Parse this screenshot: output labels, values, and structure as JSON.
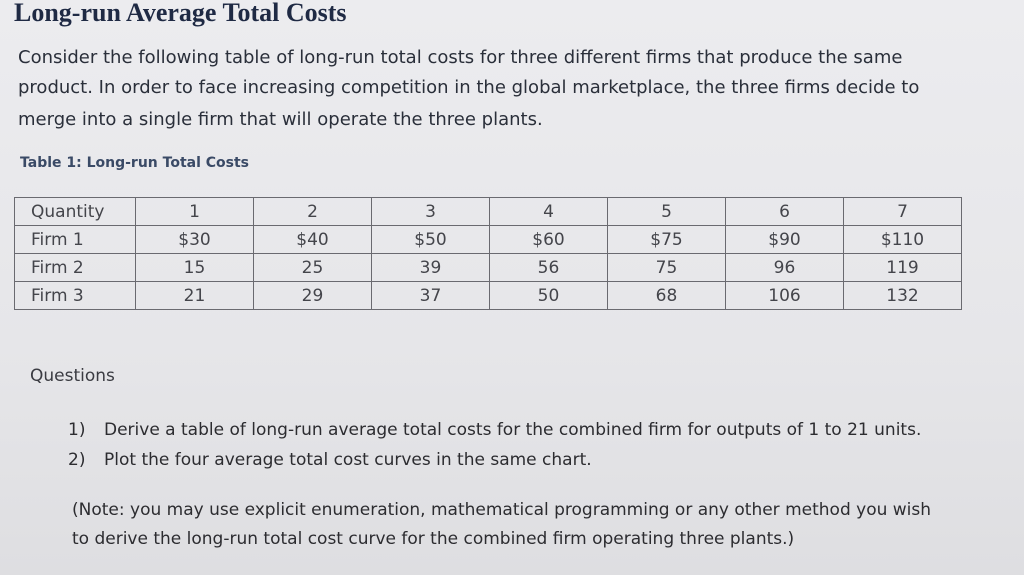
{
  "title": "Long-run Average Total Costs",
  "intro": [
    "Consider the following table of long-run total costs for three different firms that produce the same",
    "product.  In order to face increasing competition in the global marketplace, the three firms decide to",
    "merge into a single firm that will operate the three plants."
  ],
  "table": {
    "caption": "Table 1: Long-run Total Costs",
    "rows": [
      [
        "Quantity",
        "1",
        "2",
        "3",
        "4",
        "5",
        "6",
        "7"
      ],
      [
        "Firm 1",
        "$30",
        "$40",
        "$50",
        "$60",
        "$75",
        "$90",
        "$110"
      ],
      [
        "Firm 2",
        "15",
        "25",
        "39",
        "56",
        "75",
        "96",
        "119"
      ],
      [
        "Firm 3",
        "21",
        "29",
        "37",
        "50",
        "68",
        "106",
        "132"
      ]
    ]
  },
  "questions": {
    "heading": "Questions",
    "items": [
      {
        "number": "1)",
        "text": "Derive a table of long-run average total costs for the combined firm for outputs of 1 to 21 units."
      },
      {
        "number": "2)",
        "text": "Plot the four average total cost curves in the same chart."
      }
    ]
  },
  "note": [
    "(Note: you may use explicit enumeration, mathematical programming or any other method you wish",
    "to derive the long-run total cost curve for the combined firm operating three plants.)"
  ]
}
